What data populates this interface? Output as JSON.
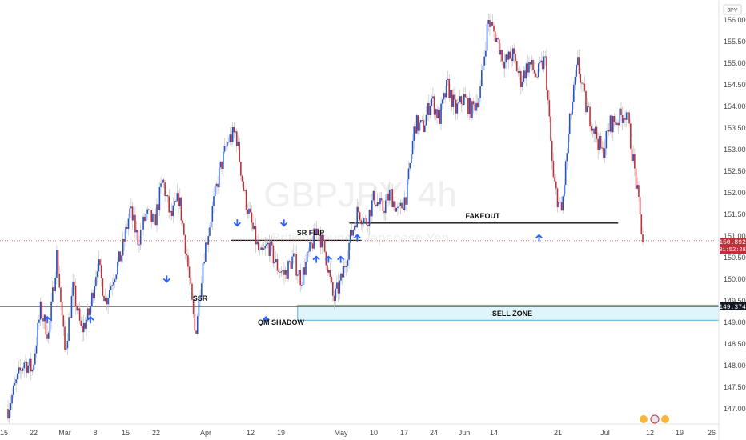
{
  "chart_data": {
    "type": "candlestick",
    "symbol": "GBPJPY, 4h",
    "subtitle": "British Pound / Japanese Yen",
    "currency": "JPY",
    "ylim": [
      146.8,
      156.2
    ],
    "y_ticks": [
      "147.000",
      "147.500",
      "148.000",
      "148.500",
      "149.000",
      "149.500",
      "150.000",
      "150.500",
      "151.000",
      "151.500",
      "152.000",
      "152.500",
      "153.000",
      "153.500",
      "154.000",
      "154.500",
      "155.000",
      "155.500",
      "156.000"
    ],
    "x_ticks": [
      "15",
      "22",
      "Mar",
      "8",
      "15",
      "22",
      "Apr",
      "12",
      "19",
      "May",
      "10",
      "17",
      "24",
      "Jun",
      "14",
      "21",
      "Jul",
      "12",
      "19",
      "26"
    ],
    "last_price": "150.892",
    "countdown": "01:52:28",
    "level_price": "149.374",
    "colors": {
      "up": "#2354c4",
      "down": "#c0303a",
      "wick": "#b8b8b8",
      "line": "#111111",
      "zone": "#dff4fb",
      "zone_border": "#4fb8d8",
      "arrow": "#2962ff",
      "last": "#e05a5a"
    },
    "path_points": [
      [
        0,
        147.0
      ],
      [
        1,
        147.6
      ],
      [
        2,
        148.1
      ],
      [
        3,
        147.9
      ],
      [
        4,
        149.3
      ],
      [
        5,
        148.7
      ],
      [
        6,
        150.6
      ],
      [
        7,
        148.3
      ],
      [
        8,
        149.8
      ],
      [
        9,
        148.8
      ],
      [
        10,
        149.2
      ],
      [
        11,
        150.4
      ],
      [
        12,
        149.5
      ],
      [
        13,
        150.1
      ],
      [
        14,
        150.6
      ],
      [
        15,
        151.6
      ],
      [
        16,
        150.9
      ],
      [
        17,
        151.5
      ],
      [
        18,
        151.3
      ],
      [
        19,
        152.3
      ],
      [
        20,
        151.4
      ],
      [
        21,
        151.9
      ],
      [
        22,
        150.5
      ],
      [
        23,
        148.7
      ],
      [
        24,
        150.5
      ],
      [
        25,
        151.5
      ],
      [
        26,
        152.5
      ],
      [
        27,
        153.2
      ],
      [
        28,
        153.4
      ],
      [
        29,
        152.0
      ],
      [
        30,
        151.2
      ],
      [
        31,
        150.5
      ],
      [
        32,
        150.8
      ],
      [
        33,
        150.3
      ],
      [
        34,
        150.1
      ],
      [
        35,
        150.5
      ],
      [
        36,
        150.0
      ],
      [
        37,
        150.6
      ],
      [
        38,
        151.2
      ],
      [
        39,
        150.6
      ],
      [
        40,
        149.5
      ],
      [
        41,
        150.0
      ],
      [
        42,
        150.9
      ],
      [
        43,
        151.6
      ],
      [
        44,
        151.3
      ],
      [
        45,
        151.9
      ],
      [
        46,
        151.6
      ],
      [
        47,
        152.0
      ],
      [
        48,
        151.5
      ],
      [
        49,
        152.0
      ],
      [
        50,
        153.6
      ],
      [
        51,
        153.5
      ],
      [
        52,
        154.2
      ],
      [
        53,
        153.7
      ],
      [
        54,
        154.5
      ],
      [
        55,
        153.9
      ],
      [
        56,
        154.2
      ],
      [
        57,
        153.9
      ],
      [
        58,
        154.3
      ],
      [
        59,
        156.0
      ],
      [
        60,
        155.6
      ],
      [
        61,
        155.0
      ],
      [
        62,
        155.2
      ],
      [
        63,
        154.6
      ],
      [
        64,
        155.0
      ],
      [
        65,
        154.7
      ],
      [
        66,
        155.1
      ],
      [
        67,
        152.3
      ],
      [
        68,
        151.5
      ],
      [
        69,
        153.6
      ],
      [
        70,
        155.0
      ],
      [
        71,
        154.0
      ],
      [
        72,
        153.5
      ],
      [
        73,
        152.9
      ],
      [
        74,
        153.6
      ],
      [
        75,
        153.7
      ],
      [
        76,
        153.9
      ],
      [
        77,
        152.5
      ],
      [
        78,
        150.9
      ]
    ],
    "annotations": {
      "ssr": "SSR",
      "sr_flip": "SR FLIP",
      "qm_shadow": "QM SHADOW",
      "fakeout": "FAKEOUT",
      "sell_zone": "SELL ZONE"
    },
    "levels": [
      {
        "name": "ssr-line",
        "price": 149.374,
        "x_from": 0,
        "x_to": 1
      },
      {
        "name": "sr-flip-line",
        "price": 150.9,
        "x_from": 0.322,
        "x_to": 0.503
      },
      {
        "name": "fakeout-line",
        "price": 151.3,
        "x_from": 0.486,
        "x_to": 0.86
      }
    ],
    "sell_zone": {
      "top": 149.4,
      "bottom": 149.05,
      "x_from": 0.414,
      "x_to": 1
    },
    "up_arrows": [
      {
        "x": 0.066,
        "price": 149.2
      },
      {
        "x": 0.126,
        "price": 149.2
      },
      {
        "x": 0.37,
        "price": 149.2
      },
      {
        "x": 0.44,
        "price": 150.6
      },
      {
        "x": 0.457,
        "price": 150.6
      },
      {
        "x": 0.474,
        "price": 150.6
      },
      {
        "x": 0.497,
        "price": 151.1
      },
      {
        "x": 0.75,
        "price": 151.1
      }
    ],
    "down_arrows": [
      {
        "x": 0.232,
        "price": 149.9
      },
      {
        "x": 0.33,
        "price": 151.2
      },
      {
        "x": 0.395,
        "price": 151.2
      }
    ]
  }
}
